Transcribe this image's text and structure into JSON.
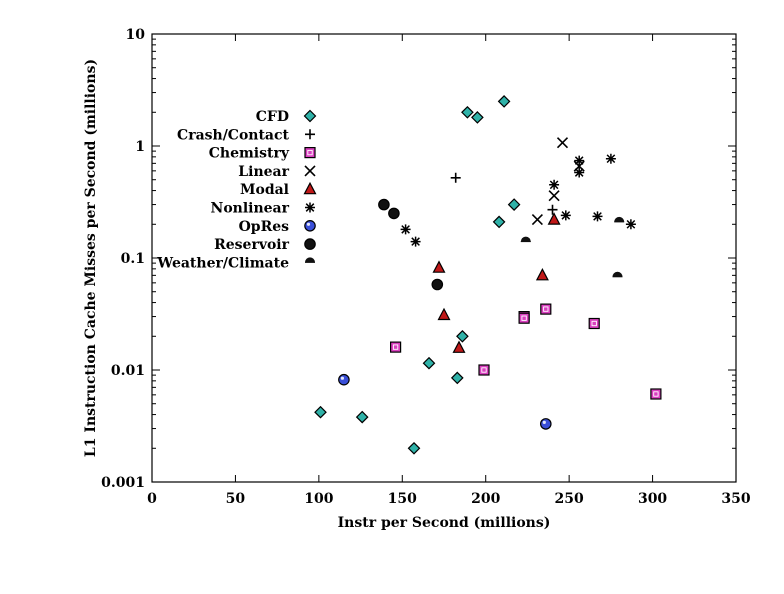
{
  "chart_data": {
    "type": "scatter",
    "title": "",
    "xlabel": "Instr per Second (millions)",
    "ylabel": "L1 Instruction Cache Misses per Second (millions)",
    "xlim": [
      0,
      350
    ],
    "ylim": [
      0.001,
      10
    ],
    "y_scale": "log",
    "x_ticks": [
      0,
      50,
      100,
      150,
      200,
      250,
      300,
      350
    ],
    "y_ticks": [
      0.001,
      0.01,
      0.1,
      1,
      10
    ],
    "y_tick_labels": [
      "0.001",
      "0.01",
      "0.1",
      "1",
      "10"
    ],
    "grid": false,
    "legend_position": "upper-left",
    "series": [
      {
        "name": "CFD",
        "marker": "diamond",
        "color": "#2fb2a8",
        "points": [
          [
            189,
            2.0
          ],
          [
            195,
            1.8
          ],
          [
            211,
            2.5
          ],
          [
            217,
            0.3
          ],
          [
            208,
            0.21
          ],
          [
            186,
            0.02
          ],
          [
            166,
            0.0115
          ],
          [
            183,
            0.0085
          ],
          [
            101,
            0.0042
          ],
          [
            126,
            0.0038
          ],
          [
            157,
            0.002
          ]
        ]
      },
      {
        "name": "Crash/Contact",
        "marker": "plus",
        "color": "#000000",
        "points": [
          [
            182,
            0.52
          ],
          [
            240,
            0.27
          ]
        ]
      },
      {
        "name": "Chemistry",
        "marker": "square",
        "color": "#d93fbf",
        "points": [
          [
            146,
            0.016
          ],
          [
            223,
            0.03
          ],
          [
            223,
            0.029
          ],
          [
            236,
            0.035
          ],
          [
            265,
            0.026
          ],
          [
            199,
            0.01
          ],
          [
            302,
            0.0061
          ]
        ]
      },
      {
        "name": "Linear",
        "marker": "x",
        "color": "#000000",
        "points": [
          [
            246,
            1.07
          ],
          [
            256,
            0.66
          ],
          [
            241,
            0.36
          ],
          [
            231,
            0.22
          ]
        ]
      },
      {
        "name": "Modal",
        "marker": "triangle",
        "color": "#c01818",
        "points": [
          [
            172,
            0.082
          ],
          [
            175,
            0.031
          ],
          [
            184,
            0.0158
          ],
          [
            234,
            0.07
          ],
          [
            241,
            0.22
          ]
        ]
      },
      {
        "name": "Nonlinear",
        "marker": "star",
        "color": "#000000",
        "points": [
          [
            256,
            0.74
          ],
          [
            256,
            0.58
          ],
          [
            275,
            0.77
          ],
          [
            241,
            0.45
          ],
          [
            248,
            0.24
          ],
          [
            267,
            0.235
          ],
          [
            287,
            0.2
          ],
          [
            152,
            0.18
          ],
          [
            158,
            0.14
          ]
        ]
      },
      {
        "name": "OpRes",
        "marker": "circle",
        "color": "#3a4fd8",
        "points": [
          [
            115,
            0.0082
          ],
          [
            236,
            0.0033
          ]
        ]
      },
      {
        "name": "Reservoir",
        "marker": "circle",
        "color": "#111111",
        "points": [
          [
            139,
            0.3
          ],
          [
            145,
            0.25
          ],
          [
            171,
            0.058
          ]
        ]
      },
      {
        "name": "Weather/Climate",
        "marker": "half-circle",
        "color": "#111111",
        "points": [
          [
            224,
            0.14
          ],
          [
            280,
            0.21
          ],
          [
            279,
            0.068
          ]
        ]
      }
    ]
  }
}
